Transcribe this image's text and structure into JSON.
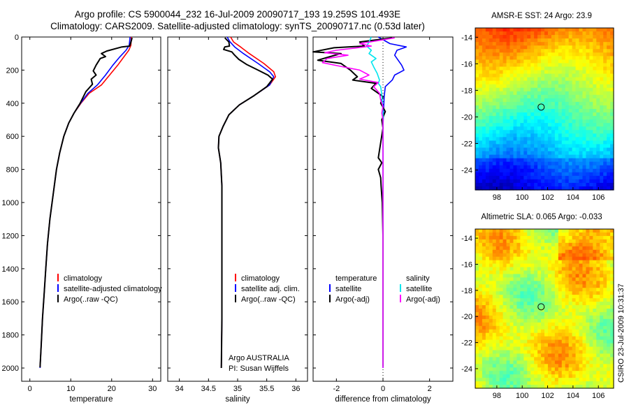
{
  "header": {
    "line1": "Argo profile: CS 5900044_232 16-Jul-2009 20090717_193 19.259S 101.493E",
    "line2": "Climatology: CARS2009. Satellite-adjusted climatology: synTS_20090717.nc (0.53d later)"
  },
  "chart_data": [
    {
      "id": "temperature",
      "type": "line",
      "xlabel": "temperature",
      "ylabel": "",
      "xlim": [
        -2,
        32
      ],
      "ylim": [
        0,
        2080
      ],
      "xticks": [
        0,
        10,
        20,
        30
      ],
      "yticks": [
        0,
        200,
        400,
        600,
        800,
        1000,
        1200,
        1400,
        1600,
        1800,
        2000
      ],
      "y_reversed": true,
      "legend": [
        "climatology",
        "satellite-adjusted climatology",
        "Argo(..raw -QC)"
      ],
      "series": [
        {
          "name": "climatology",
          "color": "#ff0000",
          "points": [
            [
              24.8,
              0
            ],
            [
              24.7,
              50
            ],
            [
              24.2,
              80
            ],
            [
              23,
              120
            ],
            [
              21.5,
              170
            ],
            [
              19.5,
              230
            ],
            [
              17.5,
              290
            ],
            [
              14.5,
              340
            ],
            [
              12.5,
              400
            ],
            [
              10.8,
              460
            ],
            [
              9.5,
              520
            ],
            [
              8.3,
              600
            ],
            [
              7.3,
              700
            ],
            [
              6.5,
              800
            ],
            [
              5.7,
              950
            ],
            [
              4.9,
              1100
            ],
            [
              4.3,
              1250
            ],
            [
              3.9,
              1400
            ],
            [
              3.5,
              1550
            ],
            [
              3.1,
              1700
            ],
            [
              2.8,
              1850
            ],
            [
              2.5,
              2000
            ]
          ]
        },
        {
          "name": "satellite-adjusted climatology",
          "color": "#0000ff",
          "points": [
            [
              24.5,
              0
            ],
            [
              24.3,
              50
            ],
            [
              23.5,
              80
            ],
            [
              22,
              120
            ],
            [
              20.3,
              170
            ],
            [
              18.5,
              230
            ],
            [
              16.5,
              290
            ],
            [
              14.2,
              340
            ],
            [
              12.4,
              400
            ],
            [
              10.8,
              460
            ],
            [
              9.5,
              520
            ],
            [
              8.3,
              600
            ],
            [
              7.3,
              700
            ],
            [
              6.5,
              800
            ],
            [
              5.7,
              950
            ],
            [
              4.9,
              1100
            ],
            [
              4.3,
              1250
            ],
            [
              3.9,
              1400
            ],
            [
              3.5,
              1550
            ],
            [
              3.1,
              1700
            ],
            [
              2.8,
              1850
            ],
            [
              2.5,
              2000
            ]
          ]
        },
        {
          "name": "Argo(..raw -QC)",
          "color": "#000000",
          "points": [
            [
              25,
              5
            ],
            [
              24.6,
              40
            ],
            [
              24.4,
              55
            ],
            [
              22.5,
              60
            ],
            [
              18.8,
              85
            ],
            [
              17.5,
              100
            ],
            [
              18.5,
              118
            ],
            [
              17.2,
              130
            ],
            [
              16.2,
              170
            ],
            [
              15.5,
              205
            ],
            [
              16.2,
              230
            ],
            [
              15,
              255
            ],
            [
              15.3,
              285
            ],
            [
              13.7,
              330
            ],
            [
              12.3,
              400
            ],
            [
              10.8,
              460
            ],
            [
              9.5,
              520
            ],
            [
              8.3,
              600
            ],
            [
              7.3,
              700
            ],
            [
              6.5,
              800
            ],
            [
              5.7,
              950
            ],
            [
              4.9,
              1100
            ],
            [
              4.3,
              1250
            ],
            [
              3.9,
              1400
            ],
            [
              3.5,
              1550
            ],
            [
              3.1,
              1700
            ],
            [
              2.8,
              1850
            ],
            [
              2.5,
              1995
            ]
          ]
        }
      ]
    },
    {
      "id": "salinity",
      "type": "line",
      "xlabel": "salinity",
      "ylabel": "",
      "xlim": [
        33.8,
        36.2
      ],
      "ylim": [
        0,
        2080
      ],
      "xticks": [
        34,
        34.5,
        35,
        35.5,
        36
      ],
      "yticks": [
        0,
        200,
        400,
        600,
        800,
        1000,
        1200,
        1400,
        1600,
        1800,
        2000
      ],
      "y_reversed": true,
      "legend": [
        "climatology",
        "satellite adj. clim.",
        "Argo(..raw -QC)"
      ],
      "annotations": [
        "Argo AUSTRALIA",
        "PI: Susan Wijffels"
      ],
      "series": [
        {
          "name": "climatology",
          "color": "#ff0000",
          "points": [
            [
              34.88,
              0
            ],
            [
              34.93,
              30
            ],
            [
              35.05,
              60
            ],
            [
              35.2,
              100
            ],
            [
              35.45,
              160
            ],
            [
              35.62,
              210
            ],
            [
              35.65,
              240
            ],
            [
              35.55,
              290
            ],
            [
              35.3,
              350
            ],
            [
              35.03,
              410
            ],
            [
              34.85,
              470
            ],
            [
              34.75,
              540
            ],
            [
              34.68,
              600
            ],
            [
              34.67,
              670
            ],
            [
              34.71,
              760
            ],
            [
              34.73,
              900
            ],
            [
              34.73,
              1100
            ],
            [
              34.73,
              1400
            ],
            [
              34.73,
              1700
            ],
            [
              34.72,
              2000
            ]
          ]
        },
        {
          "name": "satellite adj. clim.",
          "color": "#0000ff",
          "points": [
            [
              34.82,
              0
            ],
            [
              34.87,
              30
            ],
            [
              34.95,
              60
            ],
            [
              35.1,
              100
            ],
            [
              35.35,
              160
            ],
            [
              35.55,
              210
            ],
            [
              35.62,
              240
            ],
            [
              35.55,
              290
            ],
            [
              35.3,
              350
            ],
            [
              35.03,
              410
            ],
            [
              34.85,
              470
            ],
            [
              34.75,
              540
            ],
            [
              34.68,
              600
            ],
            [
              34.67,
              670
            ],
            [
              34.71,
              760
            ],
            [
              34.73,
              900
            ],
            [
              34.73,
              1100
            ],
            [
              34.73,
              1400
            ],
            [
              34.73,
              1700
            ],
            [
              34.72,
              2000
            ]
          ]
        },
        {
          "name": "Argo(..raw -QC)",
          "color": "#000000",
          "points": [
            [
              34.78,
              5
            ],
            [
              34.85,
              30
            ],
            [
              34.86,
              55
            ],
            [
              34.78,
              60
            ],
            [
              34.76,
              75
            ],
            [
              34.9,
              90
            ],
            [
              34.95,
              110
            ],
            [
              35.02,
              135
            ],
            [
              35.15,
              165
            ],
            [
              35.35,
              200
            ],
            [
              35.52,
              230
            ],
            [
              35.6,
              255
            ],
            [
              35.5,
              300
            ],
            [
              35.28,
              355
            ],
            [
              35.03,
              410
            ],
            [
              34.85,
              470
            ],
            [
              34.75,
              540
            ],
            [
              34.68,
              600
            ],
            [
              34.67,
              670
            ],
            [
              34.71,
              760
            ],
            [
              34.73,
              900
            ],
            [
              34.73,
              1100
            ],
            [
              34.73,
              1400
            ],
            [
              34.73,
              1700
            ],
            [
              34.72,
              2000
            ]
          ]
        }
      ]
    },
    {
      "id": "difference",
      "type": "line",
      "xlabel": "difference from climatology",
      "ylabel": "",
      "xlim": [
        -3,
        3
      ],
      "ylim": [
        0,
        2080
      ],
      "xticks": [
        -2,
        0,
        2
      ],
      "yticks": [
        0,
        200,
        400,
        600,
        800,
        1000,
        1200,
        1400,
        1600,
        1800,
        2000
      ],
      "y_reversed": true,
      "legend": [
        "temperature",
        "satellite",
        "Argo(-adj)",
        "salinity",
        "satellite",
        "Argo(-adj)"
      ],
      "series": [
        {
          "name": "temperature satellite",
          "color": "#0000ff",
          "points": [
            [
              -0.2,
              0
            ],
            [
              0.3,
              40
            ],
            [
              1.0,
              60
            ],
            [
              0.6,
              80
            ],
            [
              0.5,
              110
            ],
            [
              0.6,
              130
            ],
            [
              0.8,
              170
            ],
            [
              0.9,
              200
            ],
            [
              0.5,
              230
            ],
            [
              0.4,
              260
            ],
            [
              0.1,
              300
            ],
            [
              0.05,
              360
            ],
            [
              0.02,
              450
            ],
            [
              0,
              550
            ],
            [
              0,
              700
            ],
            [
              0,
              1000
            ],
            [
              0,
              1500
            ],
            [
              0,
              2000
            ]
          ]
        },
        {
          "name": "temperature Argo(-adj)",
          "color": "#000000",
          "points": [
            [
              0.4,
              5
            ],
            [
              -1.0,
              30
            ],
            [
              -0.8,
              55
            ],
            [
              -2.1,
              65
            ],
            [
              -3.0,
              90
            ],
            [
              -1.8,
              100
            ],
            [
              -2.3,
              120
            ],
            [
              -2.8,
              140
            ],
            [
              -1.8,
              160
            ],
            [
              -1.4,
              200
            ],
            [
              -1.1,
              240
            ],
            [
              -1.3,
              260
            ],
            [
              -0.3,
              280
            ],
            [
              -0.5,
              310
            ],
            [
              0,
              360
            ],
            [
              -0.1,
              400
            ],
            [
              0.1,
              450
            ],
            [
              -0.05,
              500
            ],
            [
              0,
              550
            ],
            [
              -0.2,
              730
            ],
            [
              -0.05,
              760
            ],
            [
              -0.2,
              800
            ],
            [
              -0.1,
              850
            ],
            [
              -0.08,
              900
            ],
            [
              -0.03,
              1000
            ],
            [
              0,
              1200
            ],
            [
              0,
              1500
            ],
            [
              0,
              1800
            ],
            [
              0,
              1990
            ]
          ]
        },
        {
          "name": "salinity satellite",
          "color": "#00e5ee",
          "points": [
            [
              -0.5,
              0
            ],
            [
              -0.6,
              30
            ],
            [
              -0.7,
              55
            ],
            [
              -0.5,
              80
            ],
            [
              -0.6,
              100
            ],
            [
              -0.3,
              130
            ],
            [
              -0.5,
              150
            ],
            [
              -0.4,
              180
            ],
            [
              -0.25,
              220
            ],
            [
              -0.15,
              260
            ],
            [
              -0.2,
              280
            ],
            [
              -0.1,
              300
            ],
            [
              -0.05,
              350
            ],
            [
              0,
              450
            ],
            [
              0,
              600
            ],
            [
              0,
              800
            ],
            [
              0,
              1200
            ],
            [
              0,
              1600
            ],
            [
              0,
              2000
            ]
          ]
        },
        {
          "name": "salinity Argo(-adj)",
          "color": "#ff00ff",
          "points": [
            [
              0.5,
              5
            ],
            [
              -1.0,
              40
            ],
            [
              -0.5,
              55
            ],
            [
              -2.0,
              80
            ],
            [
              -2.5,
              95
            ],
            [
              -1.5,
              110
            ],
            [
              -2.4,
              130
            ],
            [
              -2.6,
              155
            ],
            [
              -1.9,
              175
            ],
            [
              -1.0,
              200
            ],
            [
              -0.6,
              230
            ],
            [
              -1.0,
              255
            ],
            [
              -0.2,
              275
            ],
            [
              -0.4,
              300
            ],
            [
              -0.15,
              340
            ],
            [
              -0.1,
              380
            ],
            [
              0,
              420
            ],
            [
              -0.05,
              460
            ],
            [
              0,
              500
            ],
            [
              0,
              650
            ],
            [
              0,
              800
            ],
            [
              0,
              1100
            ],
            [
              0,
              1400
            ],
            [
              0,
              1700
            ],
            [
              0,
              2000
            ]
          ]
        }
      ]
    },
    {
      "id": "sst_map",
      "type": "heatmap",
      "title": "AMSR-E SST: 24 Argo: 23.9",
      "xlim": [
        96.3,
        107.2
      ],
      "ylim": [
        -25.5,
        -13.3
      ],
      "xticks": [
        98,
        100,
        102,
        104,
        106
      ],
      "yticks": [
        -14,
        -16,
        -18,
        -20,
        -22,
        -24
      ],
      "marker": [
        101.49,
        -19.26
      ]
    },
    {
      "id": "sla_map",
      "type": "heatmap",
      "title": "Altimetric SLA: 0.065 Argo: -0.033",
      "xlim": [
        96.3,
        107.2
      ],
      "ylim": [
        -25.5,
        -13.3
      ],
      "xticks": [
        98,
        100,
        102,
        104,
        106
      ],
      "yticks": [
        -14,
        -16,
        -18,
        -20,
        -22,
        -24
      ],
      "marker": [
        101.49,
        -19.26
      ]
    }
  ],
  "footer": {
    "credit": "CSIRO 23-Jul-2009 10:31:37"
  }
}
